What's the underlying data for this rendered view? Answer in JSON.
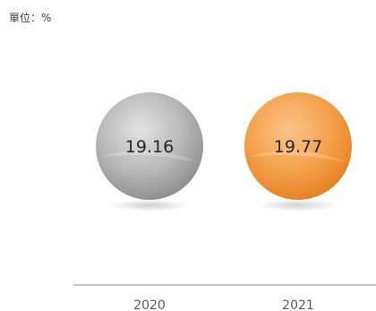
{
  "unit_label": "單位：%",
  "chart_data": {
    "type": "bubble",
    "categories": [
      "2020",
      "2021"
    ],
    "values": [
      19.16,
      19.77
    ],
    "value_labels": [
      "19.16",
      "19.77"
    ],
    "colors": [
      "#b3b3b3",
      "#f39a3e"
    ]
  }
}
